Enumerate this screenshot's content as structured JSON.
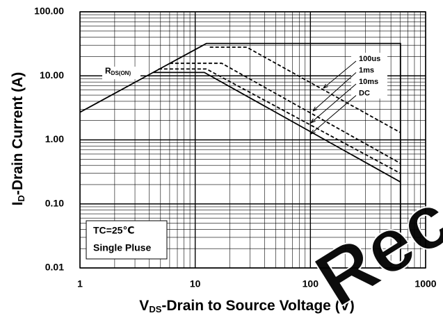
{
  "chart_data": {
    "type": "line",
    "log_x": true,
    "log_y": true,
    "grid": true,
    "minor_grid": true,
    "xlabel": {
      "main": "V",
      "sub": "DS",
      "rest": "-Drain to Source Voltage (V)"
    },
    "ylabel": {
      "main": "I",
      "sub": "D",
      "rest": "-Drain Current (A)"
    },
    "xlim": [
      1,
      1000
    ],
    "xticks": [
      1,
      10,
      100,
      1000
    ],
    "ylim": [
      0.01,
      100
    ],
    "yticks": [
      {
        "value": 0.01,
        "label": "0.01"
      },
      {
        "value": 0.1,
        "label": "0.10"
      },
      {
        "value": 1,
        "label": "1.00"
      },
      {
        "value": 10,
        "label": "10.00"
      },
      {
        "value": 100,
        "label": "100.00"
      }
    ],
    "series": [
      {
        "color": "#000000",
        "dashed": false,
        "x": [
          1,
          12.5,
          605,
          605
        ],
        "values": [
          2.7,
          32,
          32,
          0.01
        ]
      },
      {
        "name": "100us",
        "color": "#000000",
        "dashed": true,
        "x": [
          13.4,
          28,
          605
        ],
        "values": [
          28,
          28,
          1.3
        ]
      },
      {
        "name": "1ms",
        "color": "#000000",
        "dashed": true,
        "x": [
          6.0,
          17,
          605
        ],
        "values": [
          15.7,
          15.7,
          0.43
        ]
      },
      {
        "name": "10ms",
        "color": "#000000",
        "dashed": true,
        "x": [
          4.8,
          12.5,
          605
        ],
        "values": [
          12.8,
          12.8,
          0.3
        ]
      },
      {
        "name": "DC",
        "color": "#000000",
        "dashed": false,
        "x": [
          4.3,
          12,
          605
        ],
        "values": [
          11.3,
          11.3,
          0.22
        ]
      }
    ],
    "annotations": {
      "rds": {
        "main": "R",
        "sub": "DS(ON)"
      },
      "conditions": [
        "TC=25℃",
        "Single Pluse"
      ]
    },
    "watermark": "Reco"
  }
}
